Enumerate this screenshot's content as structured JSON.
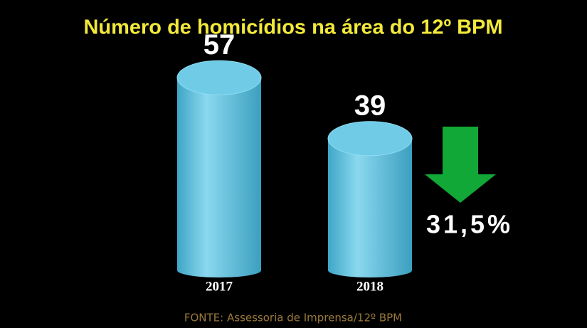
{
  "chart_data": {
    "type": "cylinder-bar",
    "title": "Número de homicídios na área do 12º BPM",
    "categories": [
      "2017",
      "2018"
    ],
    "values": [
      57,
      39
    ],
    "color": "#5cc3e0",
    "annotation": "31,5%",
    "source": "FONTE: Assessoria de Imprensa/12º BPM"
  }
}
